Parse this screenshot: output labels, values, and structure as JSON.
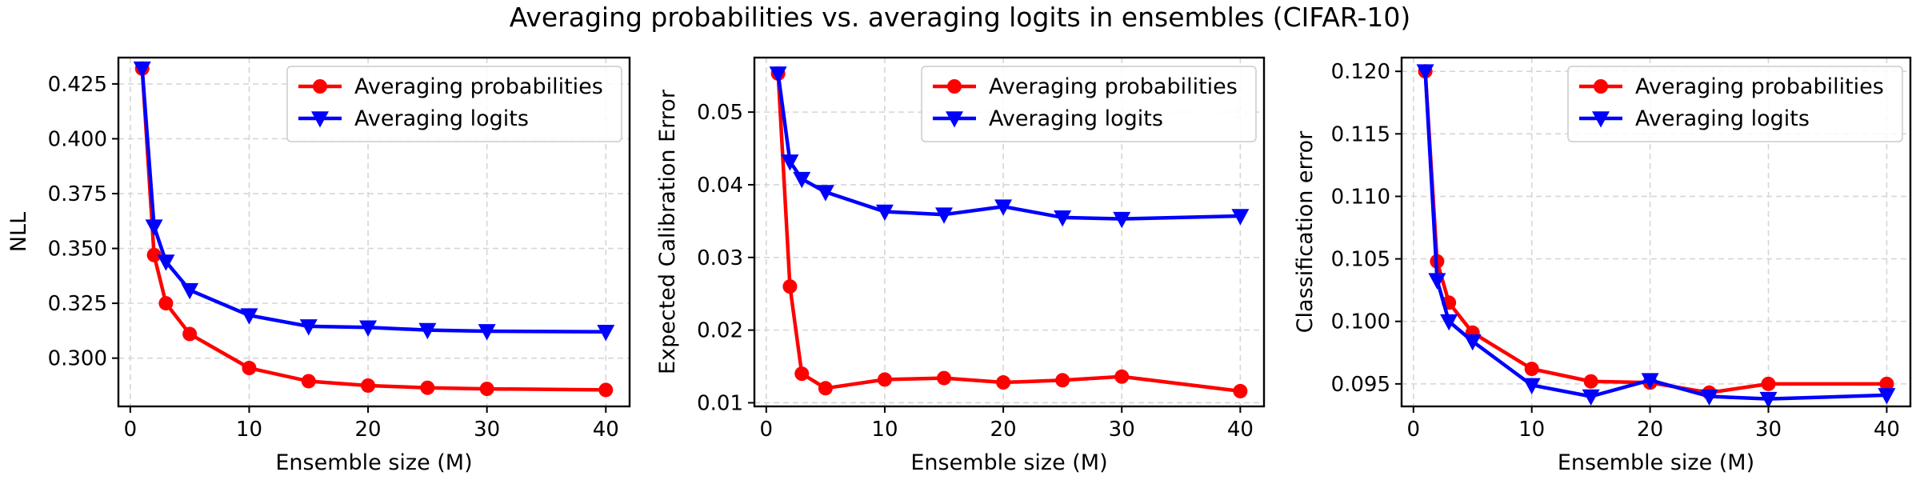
{
  "title": "Averaging probabilities vs. averaging logits in ensembles (CIFAR-10)",
  "colors": {
    "prob": "#ff0000",
    "logit": "#0000ff"
  },
  "chart_data": [
    {
      "type": "line",
      "xlabel": "Ensemble size (M)",
      "ylabel": "NLL",
      "xlim": [
        -1,
        42
      ],
      "ylim": [
        0.278,
        0.437
      ],
      "xticks": [
        0,
        10,
        20,
        30,
        40
      ],
      "xtick_labels": [
        "0",
        "10",
        "20",
        "30",
        "40"
      ],
      "yticks": [
        0.3,
        0.325,
        0.35,
        0.375,
        0.4,
        0.425
      ],
      "ytick_labels": [
        "0.300",
        "0.325",
        "0.350",
        "0.375",
        "0.400",
        "0.425"
      ],
      "grid": true,
      "legend": "top-right",
      "x": [
        1,
        2,
        3,
        5,
        10,
        15,
        20,
        25,
        30,
        40
      ],
      "series": [
        {
          "name": "Averaging probabilities",
          "marker": "circle",
          "values": [
            0.432,
            0.347,
            0.325,
            0.311,
            0.2955,
            0.2895,
            0.2875,
            0.2865,
            0.286,
            0.2855
          ]
        },
        {
          "name": "Averaging logits",
          "marker": "triangle-down",
          "values": [
            0.432,
            0.36,
            0.344,
            0.331,
            0.3195,
            0.3145,
            0.314,
            0.3128,
            0.3123,
            0.312
          ]
        }
      ]
    },
    {
      "type": "line",
      "xlabel": "Ensemble size (M)",
      "ylabel": "Expected Calibration Error",
      "xlim": [
        -1,
        42
      ],
      "ylim": [
        0.0095,
        0.0575
      ],
      "xticks": [
        0,
        10,
        20,
        30,
        40
      ],
      "xtick_labels": [
        "0",
        "10",
        "20",
        "30",
        "40"
      ],
      "yticks": [
        0.01,
        0.02,
        0.03,
        0.04,
        0.05
      ],
      "ytick_labels": [
        "0.01",
        "0.02",
        "0.03",
        "0.04",
        "0.05"
      ],
      "grid": true,
      "legend": "top-right",
      "x": [
        1,
        2,
        3,
        5,
        10,
        15,
        20,
        25,
        30,
        40
      ],
      "series": [
        {
          "name": "Averaging probabilities",
          "marker": "circle",
          "values": [
            0.0553,
            0.026,
            0.014,
            0.012,
            0.0132,
            0.0134,
            0.0128,
            0.0131,
            0.0136,
            0.0116
          ]
        },
        {
          "name": "Averaging logits",
          "marker": "triangle-down",
          "values": [
            0.0553,
            0.0432,
            0.0408,
            0.039,
            0.0363,
            0.0359,
            0.037,
            0.0355,
            0.0353,
            0.0357
          ]
        }
      ]
    },
    {
      "type": "line",
      "xlabel": "Ensemble size (M)",
      "ylabel": "Classification error",
      "xlim": [
        -1,
        42
      ],
      "ylim": [
        0.0932,
        0.1211
      ],
      "xticks": [
        0,
        10,
        20,
        30,
        40
      ],
      "xtick_labels": [
        "0",
        "10",
        "20",
        "30",
        "40"
      ],
      "yticks": [
        0.095,
        0.1,
        0.105,
        0.11,
        0.115,
        0.12
      ],
      "ytick_labels": [
        "0.095",
        "0.100",
        "0.105",
        "0.110",
        "0.115",
        "0.120"
      ],
      "grid": true,
      "legend": "top-right",
      "x": [
        1,
        2,
        3,
        5,
        10,
        15,
        20,
        25,
        30,
        40
      ],
      "series": [
        {
          "name": "Averaging probabilities",
          "marker": "circle",
          "values": [
            0.12,
            0.1048,
            0.1015,
            0.0991,
            0.0962,
            0.0952,
            0.0951,
            0.0943,
            0.095,
            0.095
          ]
        },
        {
          "name": "Averaging logits",
          "marker": "triangle-down",
          "values": [
            0.12,
            0.1033,
            0.1,
            0.0984,
            0.0949,
            0.094,
            0.0953,
            0.094,
            0.0938,
            0.0941
          ]
        }
      ]
    }
  ]
}
